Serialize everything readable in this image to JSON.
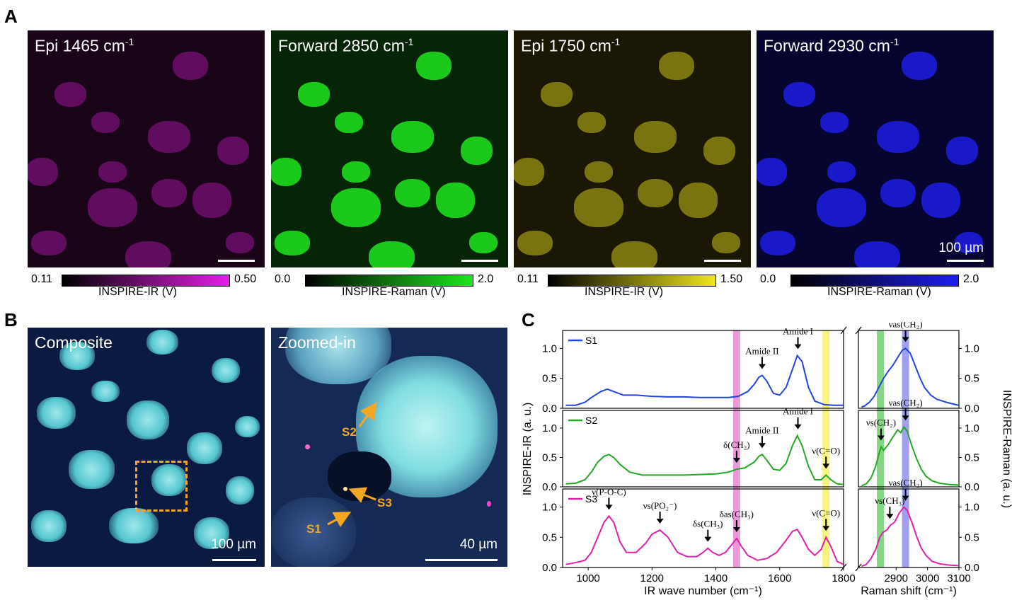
{
  "panel_letters": {
    "a": "A",
    "b": "B",
    "c": "C"
  },
  "panelA": {
    "images": [
      {
        "title": "Epi 1465 cm",
        "sup": "-1",
        "cb_min": "0.11",
        "cb_max": "0.50",
        "cb_label": "INSPIRE-IR (V)",
        "color": "#e61ee6"
      },
      {
        "title": "Forward 2850 cm",
        "sup": "-1",
        "cb_min": "0.0",
        "cb_max": "2.0",
        "cb_label": "INSPIRE-Raman (V)",
        "color": "#1ee61e"
      },
      {
        "title": "Epi 1750 cm",
        "sup": "-1",
        "cb_min": "0.11",
        "cb_max": "1.50",
        "cb_label": "INSPIRE-IR (V)",
        "color": "#f0e61e"
      },
      {
        "title": "Forward 2930 cm",
        "sup": "-1",
        "cb_min": "0.0",
        "cb_max": "2.0",
        "cb_label": "INSPIRE-Raman (V)",
        "color": "#1e1ef0"
      }
    ],
    "scale_label": "100 µm"
  },
  "panelB": {
    "composite_title": "Composite",
    "zoom_title": "Zoomed-in",
    "composite_scale": "100 µm",
    "zoom_scale": "40 µm",
    "points": [
      "S1",
      "S2",
      "S3"
    ]
  },
  "chart_data": [
    {
      "type": "line",
      "name": "IR spectra",
      "xlabel": "IR wave number (cm⁻¹)",
      "ylabel": "INSPIRE-IR (a. u.)",
      "xlim": [
        920,
        1800
      ],
      "ylim": [
        0,
        1.3
      ],
      "xticks": [
        1000,
        1200,
        1400,
        1600,
        1800
      ],
      "yticks": [
        "0.0",
        "0.5",
        "1.0"
      ],
      "highlight_bands": [
        {
          "center": 1465,
          "color": "#e680d0"
        },
        {
          "center": 1745,
          "color": "#f5f060"
        }
      ],
      "series": [
        {
          "name": "S1",
          "color": "#2244dd",
          "x": [
            930,
            960,
            990,
            1010,
            1040,
            1060,
            1080,
            1110,
            1150,
            1200,
            1250,
            1300,
            1350,
            1400,
            1440,
            1470,
            1500,
            1520,
            1535,
            1545,
            1560,
            1580,
            1600,
            1620,
            1640,
            1655,
            1670,
            1690,
            1710,
            1740,
            1770,
            1800
          ],
          "y": [
            0.05,
            0.05,
            0.1,
            0.18,
            0.28,
            0.32,
            0.28,
            0.22,
            0.22,
            0.2,
            0.19,
            0.19,
            0.18,
            0.18,
            0.18,
            0.2,
            0.28,
            0.4,
            0.52,
            0.55,
            0.45,
            0.25,
            0.22,
            0.35,
            0.65,
            0.88,
            0.78,
            0.35,
            0.12,
            0.06,
            0.05,
            0.05
          ],
          "annotations": [
            {
              "label": "Amide II",
              "x": 1545,
              "y": 0.55
            },
            {
              "label": "Amide I",
              "x": 1657,
              "y": 0.88
            }
          ]
        },
        {
          "name": "S2",
          "color": "#22aa22",
          "x": [
            930,
            960,
            990,
            1010,
            1030,
            1050,
            1065,
            1080,
            1100,
            1130,
            1170,
            1200,
            1250,
            1300,
            1350,
            1400,
            1440,
            1465,
            1490,
            1520,
            1535,
            1545,
            1560,
            1580,
            1600,
            1620,
            1640,
            1655,
            1670,
            1690,
            1710,
            1730,
            1745,
            1760,
            1780,
            1800
          ],
          "y": [
            0.05,
            0.06,
            0.12,
            0.25,
            0.42,
            0.52,
            0.55,
            0.5,
            0.38,
            0.25,
            0.2,
            0.2,
            0.2,
            0.2,
            0.21,
            0.22,
            0.25,
            0.3,
            0.32,
            0.42,
            0.52,
            0.55,
            0.45,
            0.3,
            0.28,
            0.4,
            0.7,
            0.87,
            0.7,
            0.35,
            0.12,
            0.12,
            0.2,
            0.12,
            0.05,
            0.04
          ],
          "annotations": [
            {
              "label": "δ(CH₂)",
              "x": 1465,
              "y": 0.3
            },
            {
              "label": "Amide II",
              "x": 1545,
              "y": 0.55
            },
            {
              "label": "Amide I",
              "x": 1657,
              "y": 0.87
            },
            {
              "label": "ν(C=O)",
              "x": 1745,
              "y": 0.2
            }
          ]
        },
        {
          "name": "S3",
          "color": "#dd22aa",
          "x": [
            930,
            960,
            990,
            1010,
            1030,
            1050,
            1065,
            1080,
            1100,
            1120,
            1150,
            1180,
            1200,
            1225,
            1250,
            1280,
            1310,
            1340,
            1360,
            1375,
            1390,
            1410,
            1430,
            1450,
            1465,
            1480,
            1500,
            1530,
            1560,
            1590,
            1620,
            1640,
            1655,
            1670,
            1690,
            1710,
            1730,
            1745,
            1760,
            1780,
            1800
          ],
          "y": [
            0.05,
            0.08,
            0.12,
            0.25,
            0.5,
            0.75,
            0.85,
            0.75,
            0.42,
            0.25,
            0.25,
            0.4,
            0.55,
            0.62,
            0.5,
            0.25,
            0.18,
            0.18,
            0.25,
            0.32,
            0.25,
            0.2,
            0.25,
            0.38,
            0.48,
            0.35,
            0.2,
            0.12,
            0.15,
            0.25,
            0.45,
            0.6,
            0.63,
            0.5,
            0.3,
            0.2,
            0.3,
            0.5,
            0.35,
            0.1,
            0.05
          ],
          "annotations": [
            {
              "label": "ν(P-O-C)",
              "x": 1065,
              "y": 0.85
            },
            {
              "label": "νs(PO₂⁻)",
              "x": 1225,
              "y": 0.62
            },
            {
              "label": "δs(CH₃)",
              "x": 1375,
              "y": 0.32
            },
            {
              "label": "δas(CH₃)",
              "x": 1465,
              "y": 0.48
            },
            {
              "label": "ν(C=O)",
              "x": 1745,
              "y": 0.5
            }
          ]
        }
      ]
    },
    {
      "type": "line",
      "name": "Raman spectra",
      "xlabel": "Raman shift (cm⁻¹)",
      "ylabel": "INSPIRE-Raman (a. u.)",
      "xlim": [
        2780,
        3100
      ],
      "ylim": [
        0,
        1.3
      ],
      "xticks": [
        2900,
        3000,
        3100
      ],
      "yticks": [
        "0.0",
        "0.5",
        "1.0"
      ],
      "highlight_bands": [
        {
          "center": 2850,
          "color": "#66cc66"
        },
        {
          "center": 2930,
          "color": "#8888ee"
        }
      ],
      "series": [
        {
          "name": "S1",
          "color": "#2244dd",
          "x": [
            2790,
            2800,
            2815,
            2830,
            2845,
            2860,
            2875,
            2890,
            2905,
            2920,
            2930,
            2945,
            2960,
            2975,
            2990,
            3010,
            3030,
            3060,
            3090,
            3100
          ],
          "y": [
            0.02,
            0.04,
            0.1,
            0.2,
            0.35,
            0.5,
            0.62,
            0.72,
            0.85,
            0.97,
            1.0,
            0.92,
            0.72,
            0.52,
            0.35,
            0.22,
            0.15,
            0.1,
            0.06,
            0.05
          ],
          "annotations": [
            {
              "label": "νas(CH₂)",
              "x": 2930,
              "y": 1.0
            }
          ]
        },
        {
          "name": "S2",
          "color": "#22aa22",
          "x": [
            2790,
            2805,
            2820,
            2835,
            2845,
            2852,
            2860,
            2875,
            2890,
            2905,
            2915,
            2925,
            2935,
            2950,
            2965,
            2980,
            2995,
            3015,
            3040,
            3070,
            3100
          ],
          "y": [
            0.02,
            0.05,
            0.15,
            0.35,
            0.55,
            0.68,
            0.62,
            0.72,
            0.85,
            0.97,
            0.92,
            1.02,
            0.95,
            0.7,
            0.48,
            0.3,
            0.18,
            0.1,
            0.06,
            0.04,
            0.03
          ],
          "annotations": [
            {
              "label": "νs(CH₂)",
              "x": 2852,
              "y": 0.68
            },
            {
              "label": "νas(CH₂)",
              "x": 2930,
              "y": 1.02
            }
          ]
        },
        {
          "name": "S3",
          "color": "#dd22aa",
          "x": [
            2790,
            2805,
            2820,
            2835,
            2848,
            2858,
            2870,
            2882,
            2895,
            2910,
            2925,
            2935,
            2950,
            2965,
            2980,
            2995,
            3015,
            3040,
            3070,
            3100
          ],
          "y": [
            0.02,
            0.05,
            0.15,
            0.3,
            0.5,
            0.58,
            0.62,
            0.7,
            0.75,
            0.9,
            1.0,
            0.95,
            0.75,
            0.52,
            0.32,
            0.2,
            0.1,
            0.06,
            0.04,
            0.03
          ],
          "annotations": [
            {
              "label": "νs(CH₃)",
              "x": 2880,
              "y": 0.7
            },
            {
              "label": "νas(CH₂)",
              "x": 2930,
              "y": 1.0
            }
          ]
        }
      ]
    }
  ]
}
